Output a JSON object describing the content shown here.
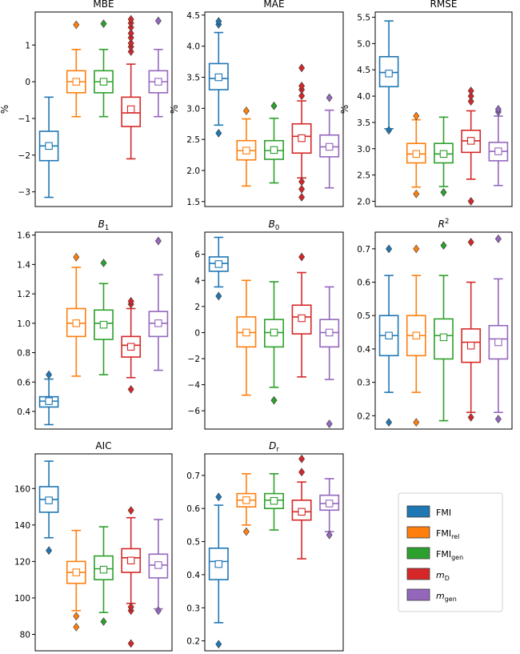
{
  "colors": {
    "FMI": "#1f77b4",
    "FMI_rel": "#ff7f0e",
    "FMI_gen": "#2ca02c",
    "m_D": "#d62728",
    "m_gen": "#9467bd"
  },
  "legend": [
    {
      "key": "FMI",
      "base": "FMI",
      "sub": "",
      "italic": false
    },
    {
      "key": "FMI_rel",
      "base": "FMI",
      "sub": "rel",
      "italic": false
    },
    {
      "key": "FMI_gen",
      "base": "FMI",
      "sub": "gen",
      "italic": false
    },
    {
      "key": "m_D",
      "base": "m",
      "sub": "D",
      "italic": true
    },
    {
      "key": "m_gen",
      "base": "m",
      "sub": "gen",
      "italic": true
    }
  ],
  "chart_data": [
    {
      "type": "box",
      "id": "MBE",
      "title": "MBE",
      "title_base": "MBE",
      "title_sub": "",
      "title_sup": "",
      "title_italic": false,
      "ylabel": "%",
      "ylim": [
        -3.4,
        1.9
      ],
      "yticks": [
        -3,
        -2,
        -1,
        0,
        1
      ],
      "ytick_labels": [
        "−3",
        "−2",
        "−1",
        "0",
        "1"
      ],
      "series": [
        {
          "name": "FMI",
          "q1": -2.15,
          "median": -1.75,
          "q3": -1.35,
          "whisker_low": -3.15,
          "whisker_high": -0.42,
          "mean": -1.75,
          "outliers": []
        },
        {
          "name": "FMI_rel",
          "q1": -0.3,
          "median": 0.0,
          "q3": 0.3,
          "whisker_low": -0.95,
          "whisker_high": 0.88,
          "mean": 0.0,
          "outliers": [
            1.55
          ]
        },
        {
          "name": "FMI_gen",
          "q1": -0.3,
          "median": 0.0,
          "q3": 0.3,
          "whisker_low": -0.95,
          "whisker_high": 0.88,
          "mean": 0.0,
          "outliers": [
            1.58
          ]
        },
        {
          "name": "m_D",
          "q1": -1.22,
          "median": -0.85,
          "q3": -0.42,
          "whisker_low": -2.1,
          "whisker_high": 0.48,
          "mean": -0.75,
          "outliers": [
            0.82,
            0.95,
            1.05,
            1.2,
            1.32,
            1.48,
            1.6,
            1.7
          ]
        },
        {
          "name": "m_gen",
          "q1": -0.3,
          "median": 0.0,
          "q3": 0.3,
          "whisker_low": -0.95,
          "whisker_high": 0.88,
          "mean": 0.0,
          "outliers": [
            1.66
          ]
        }
      ]
    },
    {
      "type": "box",
      "id": "MAE",
      "title": "MAE",
      "title_base": "MAE",
      "title_sub": "",
      "title_sup": "",
      "title_italic": false,
      "ylabel": "%",
      "ylim": [
        1.42,
        4.55
      ],
      "yticks": [
        1.5,
        2.0,
        2.5,
        3.0,
        3.5,
        4.0,
        4.5
      ],
      "ytick_labels": [
        "1.5",
        "2.0",
        "2.5",
        "3.0",
        "3.5",
        "4.0",
        "4.5"
      ],
      "series": [
        {
          "name": "FMI",
          "q1": 3.3,
          "median": 3.48,
          "q3": 3.72,
          "whisker_low": 2.73,
          "whisker_high": 4.22,
          "mean": 3.5,
          "outliers": [
            2.6,
            4.35,
            4.4
          ]
        },
        {
          "name": "FMI_rel",
          "q1": 2.17,
          "median": 2.32,
          "q3": 2.48,
          "whisker_low": 1.75,
          "whisker_high": 2.83,
          "mean": 2.32,
          "outliers": [
            2.96
          ]
        },
        {
          "name": "FMI_gen",
          "q1": 2.18,
          "median": 2.32,
          "q3": 2.48,
          "whisker_low": 1.8,
          "whisker_high": 2.84,
          "mean": 2.33,
          "outliers": [
            3.04
          ]
        },
        {
          "name": "m_D",
          "q1": 2.28,
          "median": 2.55,
          "q3": 2.75,
          "whisker_low": 1.88,
          "whisker_high": 3.12,
          "mean": 2.52,
          "outliers": [
            1.57,
            1.7,
            1.82,
            3.2,
            3.3,
            3.36,
            3.65
          ]
        },
        {
          "name": "m_gen",
          "q1": 2.22,
          "median": 2.38,
          "q3": 2.57,
          "whisker_low": 1.72,
          "whisker_high": 2.97,
          "mean": 2.38,
          "outliers": [
            3.17
          ]
        }
      ]
    },
    {
      "type": "box",
      "id": "RMSE",
      "title": "RMSE",
      "title_base": "RMSE",
      "title_sub": "",
      "title_sup": "",
      "title_italic": false,
      "ylabel": "%",
      "ylim": [
        1.9,
        5.6
      ],
      "yticks": [
        2.0,
        2.5,
        3.0,
        3.5,
        4.0,
        4.5,
        5.0,
        5.5
      ],
      "ytick_labels": [
        "2.0",
        "2.5",
        "3.0",
        "3.5",
        "4.0",
        "4.5",
        "5.0",
        "5.5"
      ],
      "series": [
        {
          "name": "FMI",
          "q1": 4.18,
          "median": 4.45,
          "q3": 4.75,
          "whisker_low": 3.38,
          "whisker_high": 5.43,
          "mean": 4.43,
          "outliers": [
            3.35
          ]
        },
        {
          "name": "FMI_rel",
          "q1": 2.73,
          "median": 2.9,
          "q3": 3.1,
          "whisker_low": 2.27,
          "whisker_high": 3.55,
          "mean": 2.9,
          "outliers": [
            2.14,
            3.62
          ]
        },
        {
          "name": "FMI_gen",
          "q1": 2.73,
          "median": 2.9,
          "q3": 3.1,
          "whisker_low": 2.28,
          "whisker_high": 3.6,
          "mean": 2.9,
          "outliers": [
            2.17
          ]
        },
        {
          "name": "m_D",
          "q1": 2.93,
          "median": 3.15,
          "q3": 3.35,
          "whisker_low": 2.42,
          "whisker_high": 3.72,
          "mean": 3.15,
          "outliers": [
            2.0,
            3.9,
            4.0,
            4.1
          ]
        },
        {
          "name": "m_gen",
          "q1": 2.77,
          "median": 2.95,
          "q3": 3.12,
          "whisker_low": 2.3,
          "whisker_high": 3.62,
          "mean": 2.95,
          "outliers": [
            3.7,
            3.75
          ]
        }
      ]
    },
    {
      "type": "box",
      "id": "B1",
      "title": "B1",
      "title_base": "B",
      "title_sub": "1",
      "title_sup": "",
      "title_italic": true,
      "ylabel": "",
      "ylim": [
        0.28,
        1.62
      ],
      "yticks": [
        0.4,
        0.6,
        0.8,
        1.0,
        1.2,
        1.4,
        1.6
      ],
      "ytick_labels": [
        "0.4",
        "0.6",
        "0.8",
        "1.0",
        "1.2",
        "1.4",
        "1.6"
      ],
      "series": [
        {
          "name": "FMI",
          "q1": 0.43,
          "median": 0.47,
          "q3": 0.5,
          "whisker_low": 0.31,
          "whisker_high": 0.62,
          "mean": 0.47,
          "outliers": [
            0.65
          ]
        },
        {
          "name": "FMI_rel",
          "q1": 0.91,
          "median": 1.0,
          "q3": 1.1,
          "whisker_low": 0.64,
          "whisker_high": 1.38,
          "mean": 1.0,
          "outliers": [
            1.45
          ]
        },
        {
          "name": "FMI_gen",
          "q1": 0.89,
          "median": 1.0,
          "q3": 1.09,
          "whisker_low": 0.65,
          "whisker_high": 1.27,
          "mean": 0.99,
          "outliers": [
            1.41
          ]
        },
        {
          "name": "m_D",
          "q1": 0.77,
          "median": 0.85,
          "q3": 0.91,
          "whisker_low": 0.63,
          "whisker_high": 1.1,
          "mean": 0.84,
          "outliers": [
            0.55,
            1.13,
            1.15
          ]
        },
        {
          "name": "m_gen",
          "q1": 0.91,
          "median": 1.0,
          "q3": 1.08,
          "whisker_low": 0.68,
          "whisker_high": 1.33,
          "mean": 1.0,
          "outliers": [
            1.56
          ]
        }
      ]
    },
    {
      "type": "box",
      "id": "B0",
      "title": "B0",
      "title_base": "B",
      "title_sub": "0",
      "title_sup": "",
      "title_italic": true,
      "ylabel": "",
      "ylim": [
        -7.4,
        7.7
      ],
      "yticks": [
        -6,
        -4,
        -2,
        0,
        2,
        4,
        6
      ],
      "ytick_labels": [
        "−6",
        "−4",
        "−2",
        "0",
        "2",
        "4",
        "6"
      ],
      "series": [
        {
          "name": "FMI",
          "q1": 4.7,
          "median": 5.3,
          "q3": 5.8,
          "whisker_low": 3.5,
          "whisker_high": 7.3,
          "mean": 5.25,
          "outliers": [
            2.8
          ]
        },
        {
          "name": "FMI_rel",
          "q1": -1.1,
          "median": 0.0,
          "q3": 1.2,
          "whisker_low": -4.8,
          "whisker_high": 4.0,
          "mean": 0.0,
          "outliers": []
        },
        {
          "name": "FMI_gen",
          "q1": -1.1,
          "median": 0.0,
          "q3": 1.0,
          "whisker_low": -4.2,
          "whisker_high": 3.9,
          "mean": 0.0,
          "outliers": [
            -5.2
          ]
        },
        {
          "name": "m_D",
          "q1": -0.1,
          "median": 1.2,
          "q3": 2.1,
          "whisker_low": -3.4,
          "whisker_high": 4.6,
          "mean": 1.1,
          "outliers": [
            5.8
          ]
        },
        {
          "name": "m_gen",
          "q1": -1.1,
          "median": 0.0,
          "q3": 1.0,
          "whisker_low": -3.6,
          "whisker_high": 3.5,
          "mean": 0.0,
          "outliers": [
            -7.0
          ]
        }
      ]
    },
    {
      "type": "box",
      "id": "R2",
      "title": "R2",
      "title_base": "R",
      "title_sub": "",
      "title_sup": "2",
      "title_italic": true,
      "ylabel": "",
      "ylim": [
        0.16,
        0.75
      ],
      "yticks": [
        0.2,
        0.3,
        0.4,
        0.5,
        0.6,
        0.7
      ],
      "ytick_labels": [
        "0.2",
        "0.3",
        "0.4",
        "0.5",
        "0.6",
        "0.7"
      ],
      "series": [
        {
          "name": "FMI",
          "q1": 0.38,
          "median": 0.44,
          "q3": 0.5,
          "whisker_low": 0.27,
          "whisker_high": 0.62,
          "mean": 0.44,
          "outliers": [
            0.18,
            0.7
          ]
        },
        {
          "name": "FMI_rel",
          "q1": 0.38,
          "median": 0.44,
          "q3": 0.5,
          "whisker_low": 0.27,
          "whisker_high": 0.62,
          "mean": 0.44,
          "outliers": [
            0.18,
            0.7
          ]
        },
        {
          "name": "FMI_gen",
          "q1": 0.37,
          "median": 0.44,
          "q3": 0.49,
          "whisker_low": 0.185,
          "whisker_high": 0.62,
          "mean": 0.435,
          "outliers": [
            0.71
          ]
        },
        {
          "name": "m_D",
          "q1": 0.36,
          "median": 0.42,
          "q3": 0.46,
          "whisker_low": 0.21,
          "whisker_high": 0.6,
          "mean": 0.41,
          "outliers": [
            0.195,
            0.72
          ]
        },
        {
          "name": "m_gen",
          "q1": 0.37,
          "median": 0.43,
          "q3": 0.47,
          "whisker_low": 0.21,
          "whisker_high": 0.61,
          "mean": 0.42,
          "outliers": [
            0.19,
            0.73
          ]
        }
      ]
    },
    {
      "type": "box",
      "id": "AIC",
      "title": "AIC",
      "title_base": "AIC",
      "title_sub": "",
      "title_sup": "",
      "title_italic": false,
      "ylabel": "",
      "ylim": [
        71,
        179
      ],
      "yticks": [
        80,
        100,
        120,
        140,
        160
      ],
      "ytick_labels": [
        "80",
        "100",
        "120",
        "140",
        "160"
      ],
      "series": [
        {
          "name": "FMI",
          "q1": 147,
          "median": 154,
          "q3": 161,
          "whisker_low": 133,
          "whisker_high": 175,
          "mean": 153.5,
          "outliers": [
            126
          ]
        },
        {
          "name": "FMI_rel",
          "q1": 108,
          "median": 114,
          "q3": 120,
          "whisker_low": 93,
          "whisker_high": 137,
          "mean": 114,
          "outliers": [
            84,
            90
          ]
        },
        {
          "name": "FMI_gen",
          "q1": 110,
          "median": 116,
          "q3": 123,
          "whisker_low": 92,
          "whisker_high": 139,
          "mean": 115.5,
          "outliers": [
            87
          ]
        },
        {
          "name": "m_D",
          "q1": 114,
          "median": 122,
          "q3": 127,
          "whisker_low": 97,
          "whisker_high": 144,
          "mean": 120.5,
          "outliers": [
            75,
            93,
            95,
            148
          ]
        },
        {
          "name": "m_gen",
          "q1": 111,
          "median": 118,
          "q3": 124,
          "whisker_low": 94,
          "whisker_high": 143,
          "mean": 118,
          "outliers": [
            93
          ]
        }
      ]
    },
    {
      "type": "box",
      "id": "Dr",
      "title": "Dr",
      "title_base": "D",
      "title_sub": "r",
      "title_sup": "",
      "title_italic": true,
      "ylabel": "",
      "ylim": [
        0.17,
        0.765
      ],
      "yticks": [
        0.2,
        0.3,
        0.4,
        0.5,
        0.6,
        0.7
      ],
      "ytick_labels": [
        "0.2",
        "0.3",
        "0.4",
        "0.5",
        "0.6",
        "0.7"
      ],
      "series": [
        {
          "name": "FMI",
          "q1": 0.385,
          "median": 0.44,
          "q3": 0.48,
          "whisker_low": 0.255,
          "whisker_high": 0.61,
          "mean": 0.432,
          "outliers": [
            0.19,
            0.635
          ]
        },
        {
          "name": "FMI_rel",
          "q1": 0.605,
          "median": 0.625,
          "q3": 0.645,
          "whisker_low": 0.55,
          "whisker_high": 0.705,
          "mean": 0.625,
          "outliers": [
            0.53
          ]
        },
        {
          "name": "FMI_gen",
          "q1": 0.6,
          "median": 0.625,
          "q3": 0.645,
          "whisker_low": 0.535,
          "whisker_high": 0.705,
          "mean": 0.623,
          "outliers": []
        },
        {
          "name": "m_D",
          "q1": 0.565,
          "median": 0.59,
          "q3": 0.625,
          "whisker_low": 0.448,
          "whisker_high": 0.68,
          "mean": 0.59,
          "outliers": [
            0.71,
            0.75
          ]
        },
        {
          "name": "m_gen",
          "q1": 0.595,
          "median": 0.615,
          "q3": 0.64,
          "whisker_low": 0.53,
          "whisker_high": 0.69,
          "mean": 0.615,
          "outliers": [
            0.52
          ]
        }
      ]
    }
  ]
}
